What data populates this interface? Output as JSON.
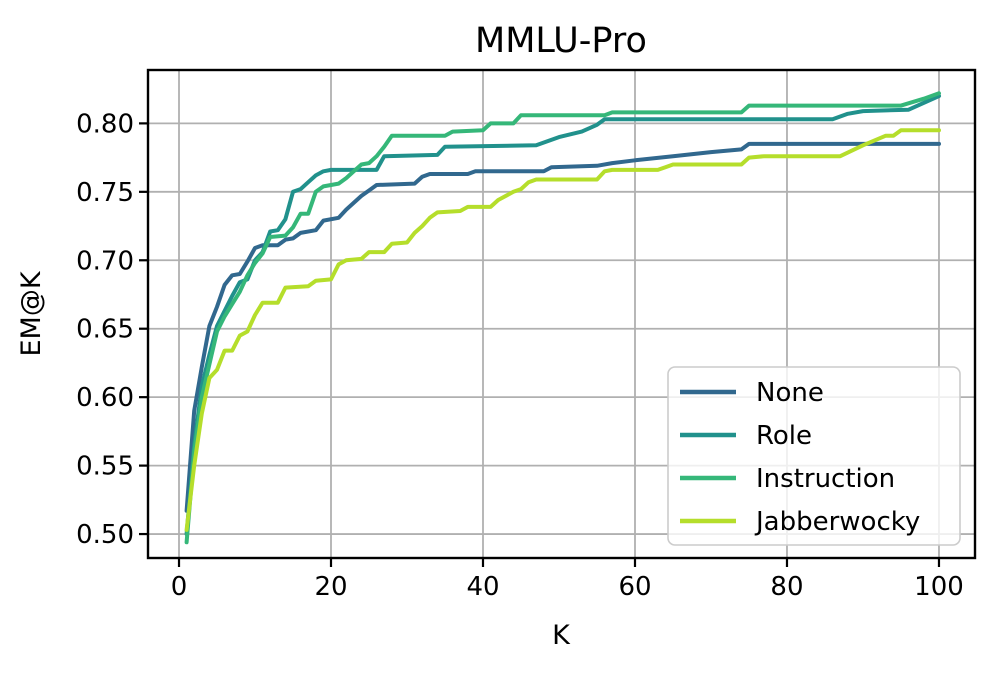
{
  "figure": {
    "background": "#ffffff",
    "grid_color": "#b0b0b0",
    "spine_color": "#000000"
  },
  "chart_data": {
    "type": "line",
    "title": "MMLU-Pro",
    "xlabel": "K",
    "ylabel": "EM@K",
    "xlim": [
      -4.08,
      104.74
    ],
    "ylim": [
      0.4825,
      0.839
    ],
    "xticks": [
      0,
      20,
      40,
      60,
      80,
      100
    ],
    "yticks": [
      0.5,
      0.55,
      0.6,
      0.65,
      0.7,
      0.75,
      0.8
    ],
    "ytick_labels": [
      "0.50",
      "0.55",
      "0.60",
      "0.65",
      "0.70",
      "0.75",
      "0.80"
    ],
    "grid": true,
    "legend_position": "lower right",
    "series": [
      {
        "name": "None",
        "color": "#31688e",
        "points": [
          [
            1,
            0.517
          ],
          [
            2,
            0.59
          ],
          [
            3,
            0.622
          ],
          [
            4,
            0.652
          ],
          [
            5,
            0.666
          ],
          [
            6,
            0.682
          ],
          [
            7,
            0.689
          ],
          [
            8,
            0.69
          ],
          [
            9,
            0.699
          ],
          [
            10,
            0.709
          ],
          [
            11,
            0.711
          ],
          [
            13,
            0.711
          ],
          [
            14,
            0.715
          ],
          [
            15,
            0.716
          ],
          [
            16,
            0.72
          ],
          [
            18,
            0.722
          ],
          [
            19,
            0.729
          ],
          [
            21,
            0.731
          ],
          [
            22,
            0.737
          ],
          [
            23,
            0.742
          ],
          [
            24,
            0.747
          ],
          [
            25,
            0.751
          ],
          [
            26,
            0.755
          ],
          [
            31,
            0.756
          ],
          [
            32,
            0.761
          ],
          [
            33,
            0.763
          ],
          [
            38,
            0.763
          ],
          [
            39,
            0.765
          ],
          [
            48,
            0.765
          ],
          [
            49,
            0.768
          ],
          [
            55,
            0.769
          ],
          [
            57,
            0.771
          ],
          [
            60,
            0.773
          ],
          [
            65,
            0.776
          ],
          [
            70,
            0.779
          ],
          [
            74,
            0.781
          ],
          [
            75,
            0.785
          ],
          [
            100,
            0.785
          ]
        ]
      },
      {
        "name": "Role",
        "color": "#21918c",
        "points": [
          [
            1,
            0.5
          ],
          [
            2,
            0.565
          ],
          [
            3,
            0.608
          ],
          [
            4,
            0.631
          ],
          [
            5,
            0.652
          ],
          [
            6,
            0.663
          ],
          [
            7,
            0.674
          ],
          [
            8,
            0.684
          ],
          [
            9,
            0.686
          ],
          [
            10,
            0.7
          ],
          [
            11,
            0.706
          ],
          [
            12,
            0.721
          ],
          [
            13,
            0.722
          ],
          [
            14,
            0.73
          ],
          [
            15,
            0.75
          ],
          [
            16,
            0.752
          ],
          [
            17,
            0.757
          ],
          [
            18,
            0.762
          ],
          [
            19,
            0.765
          ],
          [
            20,
            0.766
          ],
          [
            26,
            0.766
          ],
          [
            27,
            0.776
          ],
          [
            34,
            0.777
          ],
          [
            35,
            0.783
          ],
          [
            47,
            0.784
          ],
          [
            50,
            0.79
          ],
          [
            53,
            0.794
          ],
          [
            55,
            0.799
          ],
          [
            56,
            0.803
          ],
          [
            86,
            0.803
          ],
          [
            88,
            0.807
          ],
          [
            90,
            0.809
          ],
          [
            96,
            0.81
          ],
          [
            100,
            0.82
          ]
        ]
      },
      {
        "name": "Instruction",
        "color": "#35b779",
        "points": [
          [
            1,
            0.494
          ],
          [
            2,
            0.56
          ],
          [
            3,
            0.6
          ],
          [
            4,
            0.624
          ],
          [
            5,
            0.648
          ],
          [
            6,
            0.659
          ],
          [
            7,
            0.668
          ],
          [
            8,
            0.677
          ],
          [
            9,
            0.689
          ],
          [
            10,
            0.698
          ],
          [
            11,
            0.705
          ],
          [
            12,
            0.717
          ],
          [
            14,
            0.718
          ],
          [
            15,
            0.724
          ],
          [
            16,
            0.734
          ],
          [
            17,
            0.734
          ],
          [
            18,
            0.75
          ],
          [
            19,
            0.754
          ],
          [
            21,
            0.756
          ],
          [
            22,
            0.76
          ],
          [
            23,
            0.765
          ],
          [
            24,
            0.77
          ],
          [
            25,
            0.771
          ],
          [
            26,
            0.776
          ],
          [
            27,
            0.783
          ],
          [
            28,
            0.791
          ],
          [
            35,
            0.791
          ],
          [
            36,
            0.794
          ],
          [
            40,
            0.795
          ],
          [
            41,
            0.8
          ],
          [
            44,
            0.8
          ],
          [
            45,
            0.806
          ],
          [
            56,
            0.806
          ],
          [
            57,
            0.808
          ],
          [
            74,
            0.808
          ],
          [
            75,
            0.813
          ],
          [
            95,
            0.813
          ],
          [
            98,
            0.818
          ],
          [
            100,
            0.822
          ]
        ]
      },
      {
        "name": "Jabberwocky",
        "color": "#b5de2b",
        "points": [
          [
            1,
            0.503
          ],
          [
            2,
            0.55
          ],
          [
            3,
            0.588
          ],
          [
            4,
            0.614
          ],
          [
            5,
            0.62
          ],
          [
            6,
            0.634
          ],
          [
            7,
            0.634
          ],
          [
            8,
            0.645
          ],
          [
            9,
            0.648
          ],
          [
            10,
            0.66
          ],
          [
            11,
            0.669
          ],
          [
            13,
            0.669
          ],
          [
            14,
            0.68
          ],
          [
            17,
            0.681
          ],
          [
            18,
            0.685
          ],
          [
            20,
            0.686
          ],
          [
            21,
            0.697
          ],
          [
            22,
            0.7
          ],
          [
            24,
            0.701
          ],
          [
            25,
            0.706
          ],
          [
            27,
            0.706
          ],
          [
            28,
            0.712
          ],
          [
            30,
            0.713
          ],
          [
            31,
            0.72
          ],
          [
            32,
            0.725
          ],
          [
            33,
            0.731
          ],
          [
            34,
            0.735
          ],
          [
            37,
            0.736
          ],
          [
            38,
            0.739
          ],
          [
            41,
            0.739
          ],
          [
            42,
            0.744
          ],
          [
            44,
            0.75
          ],
          [
            45,
            0.752
          ],
          [
            46,
            0.757
          ],
          [
            47,
            0.759
          ],
          [
            55,
            0.759
          ],
          [
            56,
            0.765
          ],
          [
            57,
            0.766
          ],
          [
            63,
            0.766
          ],
          [
            64,
            0.768
          ],
          [
            65,
            0.77
          ],
          [
            74,
            0.77
          ],
          [
            75,
            0.775
          ],
          [
            77,
            0.776
          ],
          [
            87,
            0.776
          ],
          [
            90,
            0.784
          ],
          [
            93,
            0.791
          ],
          [
            94,
            0.791
          ],
          [
            95,
            0.795
          ],
          [
            100,
            0.795
          ]
        ]
      }
    ]
  },
  "legend": {
    "items": [
      "None",
      "Role",
      "Instruction",
      "Jabberwocky"
    ]
  }
}
